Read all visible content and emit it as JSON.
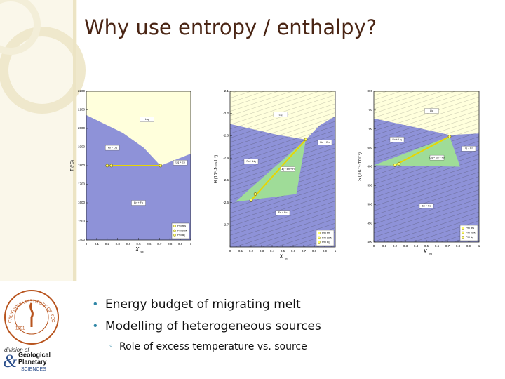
{
  "title": "Why use entropy / enthalpy?",
  "bullets": [
    {
      "text": "Energy budget of migrating melt"
    },
    {
      "text": "Modelling of heterogeneous sources",
      "sub": [
        "Role of excess temperature vs. source"
      ]
    }
  ],
  "figures": [
    {
      "ylabel": "T (°C)",
      "xlabel": "X",
      "xlabel_sub": "en",
      "ylim": [
        1400,
        2200
      ],
      "yticks": [
        1400,
        1500,
        1600,
        1700,
        1800,
        1900,
        2000,
        2100,
        2200
      ],
      "xlim": [
        0,
        1
      ],
      "xticks": [
        0,
        0.1,
        0.2,
        0.3,
        0.4,
        0.5,
        0.6,
        0.7,
        0.8,
        0.9,
        1
      ],
      "regions": [
        "Liq",
        "Fo + Liq",
        "Liq + En",
        "En + Fo"
      ],
      "legend": [
        "PM res",
        "PM bulk",
        "PM liq"
      ]
    },
    {
      "ylabel": "H (10⁵ J·mol⁻¹)",
      "xlabel": "X",
      "xlabel_sub": "en",
      "ylim": [
        -2.8,
        -2.1
      ],
      "yticks": [
        -2.7,
        -2.6,
        -2.5,
        -2.4,
        -2.3,
        -2.2,
        -2.1
      ],
      "xlim": [
        0,
        1
      ],
      "xticks": [
        0,
        0.1,
        0.2,
        0.3,
        0.4,
        0.5,
        0.6,
        0.7,
        0.8,
        0.9,
        1
      ],
      "regions": [
        "Liq",
        "Fo + Liq",
        "Liq + En",
        "Liq + En + Fo",
        "En + Fo"
      ],
      "legend": [
        "PM res",
        "PM bulk",
        "PM liq"
      ]
    },
    {
      "ylabel": "S (J·K⁻¹·mol⁻¹)",
      "xlabel": "X",
      "xlabel_sub": "en",
      "ylim": [
        400,
        800
      ],
      "yticks": [
        400,
        450,
        500,
        550,
        600,
        650,
        700,
        750,
        800
      ],
      "xlim": [
        0,
        1
      ],
      "xticks": [
        0,
        0.1,
        0.2,
        0.3,
        0.4,
        0.5,
        0.6,
        0.7,
        0.8,
        0.9,
        1
      ],
      "regions": [
        "Liq",
        "Fo + Liq",
        "Liq + En",
        "Liq + En + Fo",
        "En + Fo"
      ],
      "legend": [
        "PM res",
        "PM bulk",
        "PM liq"
      ]
    }
  ],
  "logo": {
    "seal": "CALIFORNIA INSTITUTE OF TECHNOLOGY",
    "year": "1891",
    "division": "division of",
    "amp": "&",
    "line1": "Geological",
    "line2": "Planetary",
    "line3": "SCIENCES"
  }
}
